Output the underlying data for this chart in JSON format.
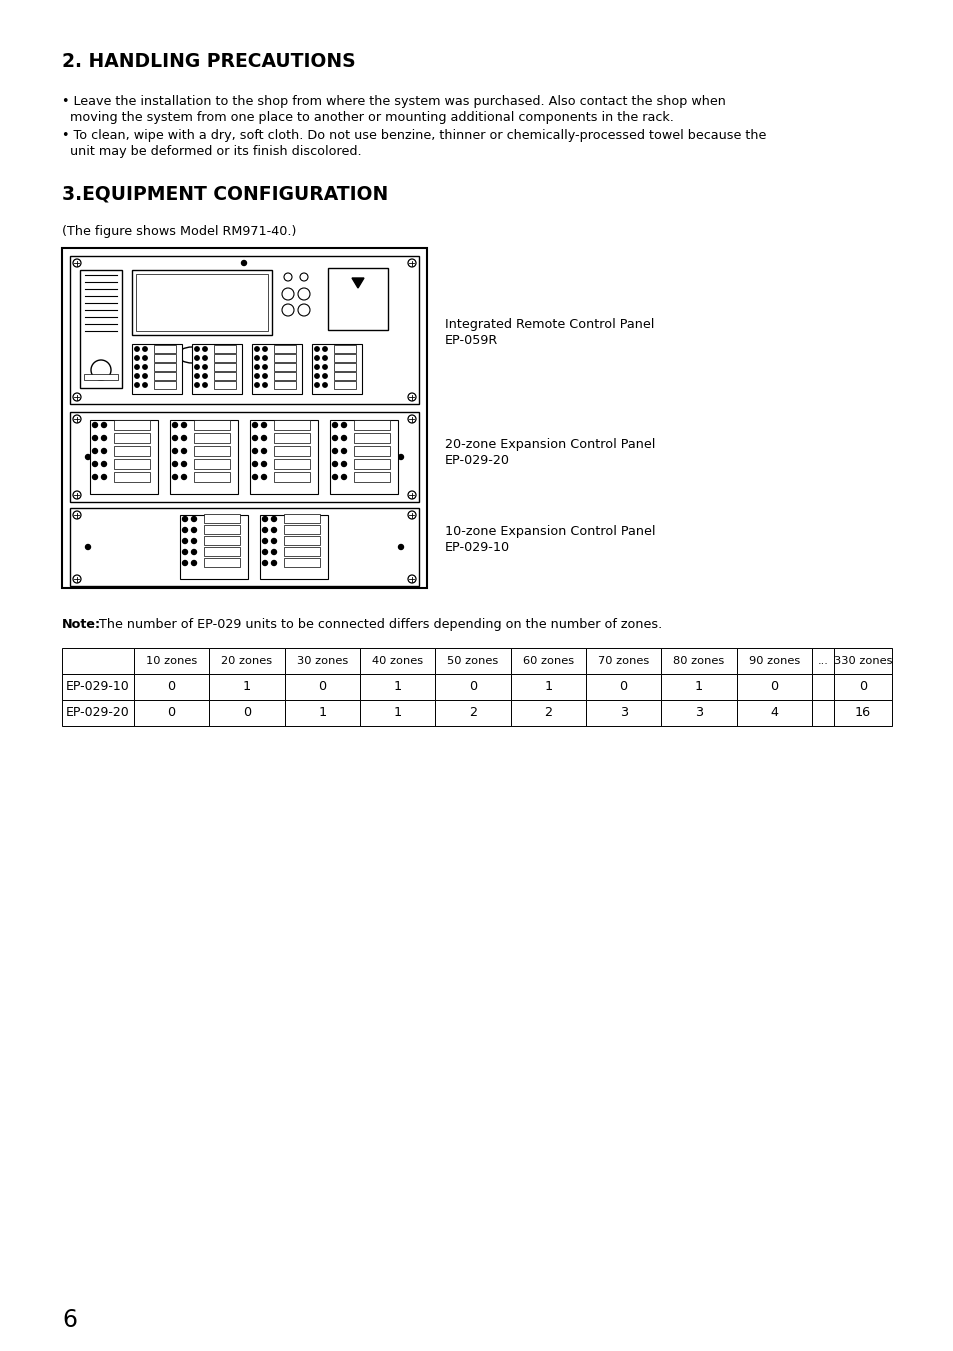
{
  "bg_color": "#ffffff",
  "section1_title": "2. HANDLING PRECAUTIONS",
  "section1_bullet1_line1": "• Leave the installation to the shop from where the system was purchased. Also contact the shop when",
  "section1_bullet1_line2": "  moving the system from one place to another or mounting additional components in the rack.",
  "section1_bullet2_line1": "• To clean, wipe with a dry, soft cloth. Do not use benzine, thinner or chemically-processed towel because the",
  "section1_bullet2_line2": "  unit may be deformed or its finish discolored.",
  "section2_title": "3.EQUIPMENT CONFIGURATION",
  "section2_subtitle": "(The figure shows Model RM971-40.)",
  "label1_line1": "Integrated Remote Control Panel",
  "label1_line2": "EP-059R",
  "label2_line1": "20-zone Expansion Control Panel",
  "label2_line2": "EP-029-20",
  "label3_line1": "10-zone Expansion Control Panel",
  "label3_line2": "EP-029-10",
  "note_bold": "Note:",
  "note_text": " The number of EP-029 units to be connected differs depending on the number of zones.",
  "table_headers": [
    "",
    "10 zones",
    "20 zones",
    "30 zones",
    "40 zones",
    "50 zones",
    "60 zones",
    "70 zones",
    "80 zones",
    "90 zones",
    "...",
    "330 zones"
  ],
  "table_row1": [
    "EP-029-10",
    "0",
    "1",
    "0",
    "1",
    "0",
    "1",
    "0",
    "1",
    "0",
    "",
    "0"
  ],
  "table_row2": [
    "EP-029-20",
    "0",
    "0",
    "1",
    "1",
    "2",
    "2",
    "3",
    "3",
    "4",
    "",
    "16"
  ],
  "page_number": "6",
  "text_color": "#000000"
}
